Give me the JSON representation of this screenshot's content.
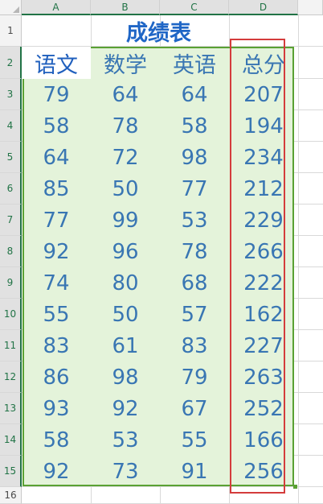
{
  "columns": [
    "A",
    "B",
    "C",
    "D"
  ],
  "rows": [
    "1",
    "2",
    "3",
    "4",
    "5",
    "6",
    "7",
    "8",
    "9",
    "10",
    "11",
    "12",
    "13",
    "14",
    "15",
    "16"
  ],
  "title": "成绩表",
  "headers": [
    "语文",
    "数学",
    "英语",
    "总分"
  ],
  "data": [
    [
      79,
      64,
      64,
      207
    ],
    [
      58,
      78,
      58,
      194
    ],
    [
      64,
      72,
      98,
      234
    ],
    [
      85,
      50,
      77,
      212
    ],
    [
      77,
      99,
      53,
      229
    ],
    [
      92,
      96,
      78,
      266
    ],
    [
      74,
      80,
      68,
      222
    ],
    [
      55,
      50,
      57,
      162
    ],
    [
      83,
      61,
      83,
      227
    ],
    [
      86,
      98,
      79,
      263
    ],
    [
      93,
      92,
      67,
      252
    ],
    [
      58,
      53,
      55,
      166
    ],
    [
      92,
      73,
      91,
      256
    ]
  ],
  "colors": {
    "selection_fill": "#e4f3da",
    "selection_border": "#5aa133",
    "highlight_box": "#d43c3c",
    "title_text": "#1f66c6",
    "cell_text": "#3976b3"
  }
}
